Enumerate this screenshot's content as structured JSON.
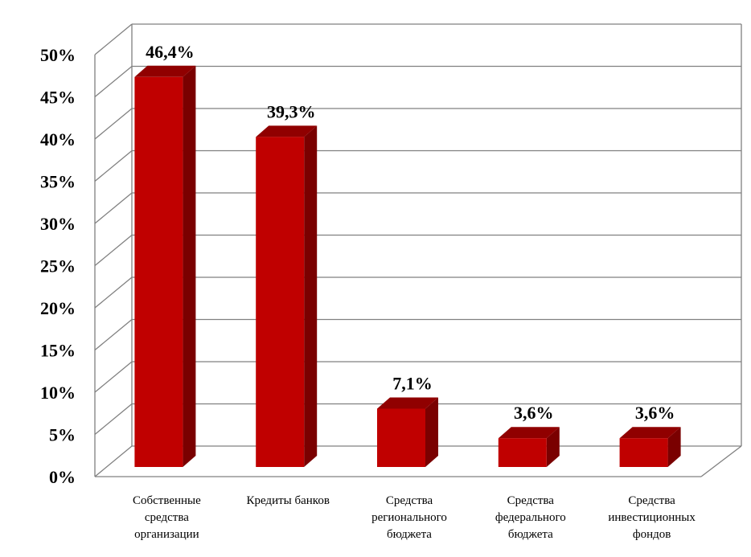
{
  "chart_data": {
    "type": "bar",
    "title": "",
    "xlabel": "",
    "ylabel": "",
    "ylim": [
      0,
      50
    ],
    "yticks": [
      "0%",
      "5%",
      "10%",
      "15%",
      "20%",
      "25%",
      "30%",
      "35%",
      "40%",
      "45%",
      "50%"
    ],
    "grid": true,
    "categories": [
      [
        "Собственные",
        "средства",
        "организации"
      ],
      [
        "Кредиты банков"
      ],
      [
        "Средства",
        "регионального",
        "бюджета"
      ],
      [
        "Средства",
        "федерального",
        "бюджета"
      ],
      [
        "Средства",
        "инвестиционных",
        "фондов"
      ]
    ],
    "values": [
      46.4,
      39.3,
      7.1,
      3.6,
      3.6
    ],
    "data_labels": [
      "46,4%",
      "39,3%",
      "7,1%",
      "3,6%",
      "3,6%"
    ],
    "colors": {
      "bar_front": "#c00000",
      "bar_side": "#7a0000",
      "bar_top": "#900000",
      "grid": "#808080"
    }
  }
}
